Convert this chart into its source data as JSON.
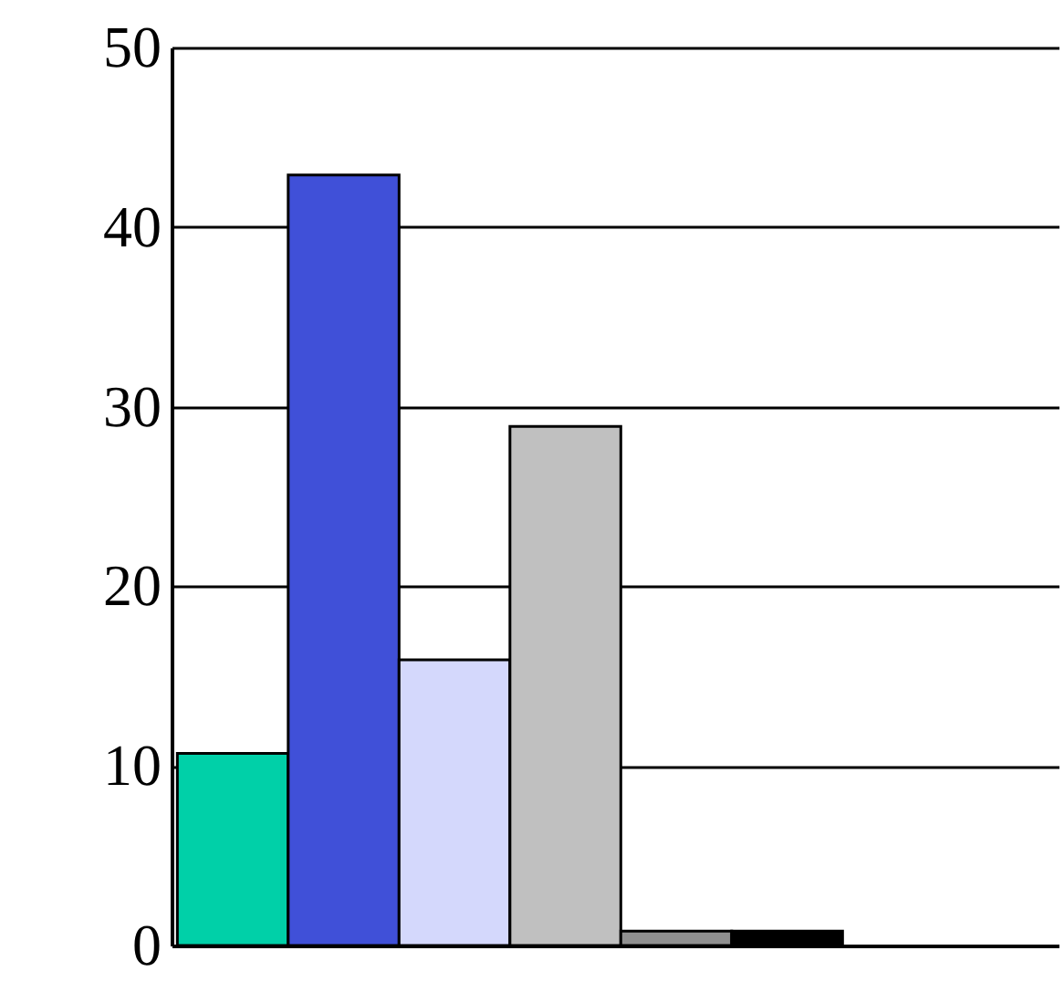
{
  "chart_data": {
    "type": "bar",
    "categories": [
      null,
      null,
      null,
      null,
      null,
      null
    ],
    "values": [
      10.7,
      42.9,
      15.9,
      28.9,
      0.8,
      0.8
    ],
    "colors": [
      "#00d0a8",
      "#4050d8",
      "#d4d8fc",
      "#c0c0c0",
      "#909090",
      "#000000"
    ],
    "ylim": [
      0,
      50
    ],
    "yticks": [
      0,
      10,
      20,
      30,
      40,
      50
    ],
    "grid": "y",
    "tick_labels": "y"
  }
}
